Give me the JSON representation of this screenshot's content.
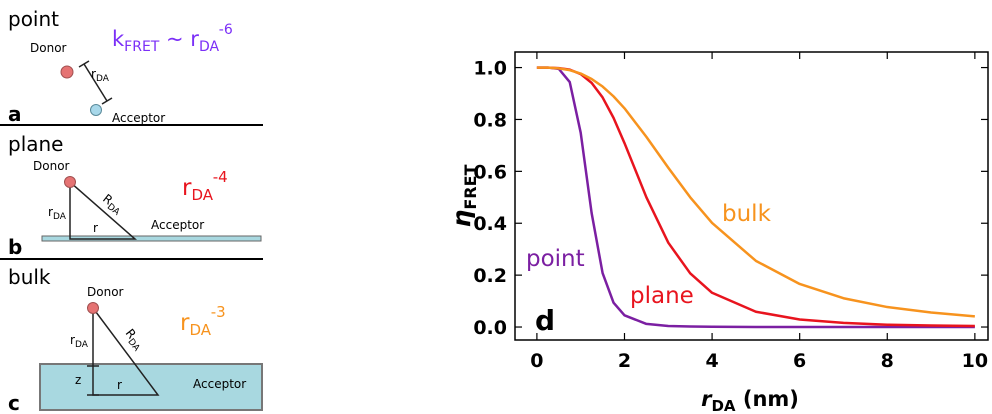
{
  "panels": [
    {
      "title": "point",
      "label": "a",
      "donor": "Donor",
      "acceptor": "Acceptor",
      "distance": [
        "r",
        "DA"
      ],
      "law": [
        "k",
        "FRET",
        " ~ r",
        "DA",
        "-6"
      ]
    },
    {
      "title": "plane",
      "label": "b",
      "donor": "Donor",
      "acceptor": "Acceptor",
      "distance": [
        "r",
        "DA"
      ],
      "radius": [
        "R",
        "DA"
      ],
      "r": "r",
      "law": [
        "r",
        "DA",
        "-4"
      ]
    },
    {
      "title": "bulk",
      "label": "c",
      "donor": "Donor",
      "acceptor": "Acceptor",
      "distance": [
        "r",
        "DA"
      ],
      "radius": [
        "R",
        "DA"
      ],
      "r": "r",
      "z": "z",
      "law": [
        "r",
        "DA",
        "-3"
      ]
    }
  ],
  "chart_data": {
    "type": "line",
    "annotation": "d",
    "xlabel": {
      "symbol": "r",
      "subscript": "DA",
      "unit": " (nm)"
    },
    "ylabel": {
      "symbol": "η",
      "subscript": "FRET"
    },
    "x": [
      0,
      0.25,
      0.5,
      0.75,
      1,
      1.25,
      1.5,
      1.75,
      2,
      2.5,
      3,
      3.5,
      4,
      5,
      6,
      7,
      8,
      9,
      10
    ],
    "series": [
      {
        "name": "point",
        "color": "#7b1fa2",
        "values": [
          1,
          1.0,
          0.995,
          0.944,
          0.749,
          0.439,
          0.208,
          0.094,
          0.045,
          0.012,
          0.004,
          0.002,
          0.001,
          0.0,
          0.0,
          0.0,
          0.0,
          0.0,
          0.0
        ]
      },
      {
        "name": "plane",
        "color": "#e8141e",
        "values": [
          1,
          1.0,
          0.998,
          0.992,
          0.975,
          0.941,
          0.885,
          0.806,
          0.709,
          0.5,
          0.325,
          0.207,
          0.132,
          0.059,
          0.029,
          0.016,
          0.009,
          0.006,
          0.004
        ]
      },
      {
        "name": "bulk",
        "color": "#f7931e",
        "values": [
          1,
          1.0,
          0.997,
          0.99,
          0.977,
          0.956,
          0.927,
          0.889,
          0.843,
          0.733,
          0.614,
          0.5,
          0.401,
          0.255,
          0.166,
          0.111,
          0.077,
          0.056,
          0.041
        ]
      }
    ],
    "xlim": [
      -0.5,
      10.3
    ],
    "ylim": [
      -0.05,
      1.06
    ],
    "xticks": [
      0,
      2,
      4,
      6,
      8,
      10
    ],
    "yticks": [
      {
        "value": 0,
        "label": "0.0"
      },
      0.2,
      0.4,
      0.6,
      0.8,
      {
        "value": 1,
        "label": "1.0"
      }
    ]
  }
}
